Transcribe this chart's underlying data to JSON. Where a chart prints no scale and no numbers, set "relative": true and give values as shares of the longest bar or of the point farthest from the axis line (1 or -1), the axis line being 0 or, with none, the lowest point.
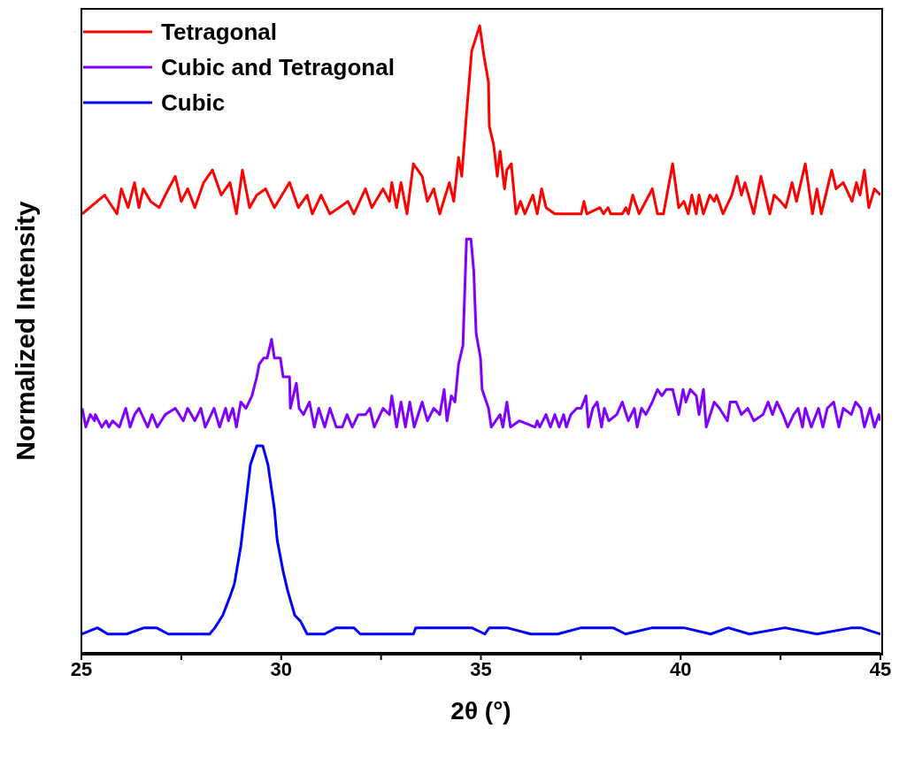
{
  "chart_data": {
    "type": "line",
    "relative": true,
    "xlabel": "2θ (°)",
    "ylabel": "Normalized Intensity",
    "legend": "top left",
    "xlim": [
      25,
      45
    ],
    "xticks": [
      25,
      {
        "value": 27.5,
        "label": null
      },
      30,
      {
        "value": 32.5,
        "label": null
      },
      35,
      {
        "value": 37.5,
        "label": null
      },
      40,
      {
        "value": 42.5,
        "label": null
      },
      45
    ],
    "series": [
      {
        "name": "Tetragonal",
        "color": "#ff0000",
        "x": [
          25.02,
          25.58,
          25.89,
          26.0,
          26.17,
          26.33,
          26.44,
          26.55,
          26.73,
          26.95,
          27.1,
          27.35,
          27.5,
          27.66,
          27.84,
          28.06,
          28.28,
          28.5,
          28.72,
          28.88,
          29.03,
          29.21,
          29.39,
          29.61,
          29.83,
          30.21,
          30.43,
          30.65,
          30.78,
          31.0,
          31.22,
          31.45,
          31.67,
          31.82,
          32.11,
          32.27,
          32.55,
          32.71,
          32.77,
          32.89,
          33.0,
          33.15,
          33.31,
          33.53,
          33.66,
          33.82,
          33.97,
          34.21,
          34.32,
          34.44,
          34.52,
          34.64,
          34.77,
          34.97,
          35.08,
          35.19,
          35.21,
          35.32,
          35.41,
          35.48,
          35.59,
          35.65,
          35.76,
          35.88,
          35.99,
          36.1,
          36.3,
          36.41,
          36.52,
          36.63,
          36.85,
          37.51,
          37.58,
          37.65,
          37.98,
          38.07,
          38.18,
          38.25,
          38.54,
          38.63,
          38.69,
          38.8,
          38.96,
          39.29,
          39.42,
          39.57,
          39.8,
          39.95,
          40.08,
          40.19,
          40.28,
          40.39,
          40.46,
          40.57,
          40.73,
          40.84,
          40.9,
          41.06,
          41.28,
          41.41,
          41.52,
          41.61,
          41.83,
          42.01,
          42.23,
          42.34,
          42.5,
          42.63,
          42.79,
          42.9,
          43.12,
          43.3,
          43.41,
          43.52,
          43.78,
          43.89,
          44.07,
          44.29,
          44.4,
          44.49,
          44.6,
          44.71,
          44.85,
          45.0
        ],
        "values": [
          0.7,
          0.73,
          0.7,
          0.74,
          0.71,
          0.75,
          0.71,
          0.74,
          0.72,
          0.71,
          0.73,
          0.76,
          0.72,
          0.74,
          0.71,
          0.75,
          0.77,
          0.73,
          0.75,
          0.7,
          0.77,
          0.71,
          0.73,
          0.74,
          0.71,
          0.75,
          0.71,
          0.73,
          0.7,
          0.73,
          0.7,
          0.71,
          0.72,
          0.7,
          0.74,
          0.71,
          0.74,
          0.72,
          0.75,
          0.71,
          0.75,
          0.7,
          0.78,
          0.76,
          0.72,
          0.74,
          0.7,
          0.75,
          0.72,
          0.79,
          0.76,
          0.86,
          0.96,
          1.0,
          0.95,
          0.91,
          0.84,
          0.81,
          0.76,
          0.8,
          0.74,
          0.77,
          0.78,
          0.7,
          0.72,
          0.7,
          0.73,
          0.7,
          0.74,
          0.71,
          0.7,
          0.7,
          0.72,
          0.7,
          0.71,
          0.7,
          0.71,
          0.7,
          0.7,
          0.71,
          0.7,
          0.73,
          0.7,
          0.74,
          0.7,
          0.7,
          0.78,
          0.71,
          0.72,
          0.7,
          0.73,
          0.7,
          0.73,
          0.7,
          0.73,
          0.72,
          0.73,
          0.7,
          0.73,
          0.76,
          0.73,
          0.75,
          0.7,
          0.76,
          0.7,
          0.73,
          0.72,
          0.71,
          0.75,
          0.72,
          0.78,
          0.7,
          0.74,
          0.7,
          0.77,
          0.74,
          0.75,
          0.72,
          0.75,
          0.73,
          0.77,
          0.71,
          0.74,
          0.73
        ]
      },
      {
        "name": "Cubic and Tetragonal",
        "color": "#8000ff",
        "x": [
          25.02,
          25.11,
          25.22,
          25.33,
          25.35,
          25.51,
          25.62,
          25.69,
          25.78,
          25.95,
          26.11,
          26.22,
          26.33,
          26.44,
          26.66,
          26.77,
          26.9,
          27.1,
          27.35,
          27.55,
          27.66,
          27.84,
          27.99,
          28.1,
          28.32,
          28.46,
          28.61,
          28.68,
          28.79,
          28.88,
          28.99,
          29.12,
          29.27,
          29.39,
          29.45,
          29.56,
          29.65,
          29.76,
          29.83,
          29.98,
          30.05,
          30.21,
          30.23,
          30.38,
          30.45,
          30.56,
          30.71,
          30.83,
          30.94,
          31.09,
          31.22,
          31.38,
          31.53,
          31.65,
          31.78,
          31.93,
          32.11,
          32.22,
          32.33,
          32.55,
          32.71,
          32.77,
          32.89,
          33.0,
          33.11,
          33.22,
          33.33,
          33.53,
          33.66,
          33.82,
          33.97,
          34.08,
          34.15,
          34.26,
          34.35,
          34.44,
          34.55,
          34.64,
          34.75,
          34.82,
          34.88,
          34.99,
          35.03,
          35.19,
          35.26,
          35.48,
          35.55,
          35.65,
          35.74,
          35.96,
          36.36,
          36.41,
          36.47,
          36.63,
          36.74,
          36.85,
          36.96,
          37.07,
          37.14,
          37.25,
          37.4,
          37.51,
          37.63,
          37.69,
          37.8,
          37.91,
          38.02,
          38.09,
          38.2,
          38.4,
          38.54,
          38.69,
          38.84,
          38.91,
          39.02,
          39.13,
          39.29,
          39.42,
          39.53,
          39.64,
          39.8,
          39.95,
          40.06,
          40.13,
          40.24,
          40.39,
          40.46,
          40.57,
          40.64,
          40.84,
          40.97,
          41.17,
          41.24,
          41.39,
          41.52,
          41.68,
          41.83,
          42.06,
          42.19,
          42.3,
          42.41,
          42.56,
          42.68,
          42.83,
          42.94,
          43.05,
          43.12,
          43.27,
          43.45,
          43.56,
          43.67,
          43.83,
          43.96,
          44.07,
          44.27,
          44.38,
          44.51,
          44.6,
          44.74,
          44.85,
          44.96,
          45.0
        ],
        "values": [
          0.39,
          0.36,
          0.38,
          0.37,
          0.38,
          0.36,
          0.37,
          0.36,
          0.37,
          0.36,
          0.39,
          0.36,
          0.38,
          0.39,
          0.36,
          0.38,
          0.36,
          0.38,
          0.39,
          0.37,
          0.39,
          0.37,
          0.39,
          0.36,
          0.39,
          0.36,
          0.39,
          0.37,
          0.39,
          0.36,
          0.4,
          0.39,
          0.41,
          0.44,
          0.46,
          0.47,
          0.47,
          0.5,
          0.47,
          0.47,
          0.44,
          0.44,
          0.39,
          0.43,
          0.39,
          0.38,
          0.4,
          0.36,
          0.39,
          0.36,
          0.39,
          0.36,
          0.36,
          0.38,
          0.36,
          0.38,
          0.38,
          0.39,
          0.36,
          0.39,
          0.38,
          0.41,
          0.36,
          0.4,
          0.36,
          0.4,
          0.36,
          0.4,
          0.37,
          0.39,
          0.38,
          0.42,
          0.37,
          0.41,
          0.4,
          0.46,
          0.49,
          0.66,
          0.66,
          0.61,
          0.51,
          0.47,
          0.42,
          0.39,
          0.36,
          0.38,
          0.36,
          0.4,
          0.36,
          0.37,
          0.36,
          0.37,
          0.36,
          0.38,
          0.36,
          0.38,
          0.36,
          0.38,
          0.36,
          0.38,
          0.39,
          0.39,
          0.41,
          0.36,
          0.39,
          0.4,
          0.36,
          0.39,
          0.37,
          0.38,
          0.4,
          0.37,
          0.39,
          0.36,
          0.39,
          0.38,
          0.4,
          0.42,
          0.41,
          0.42,
          0.42,
          0.38,
          0.42,
          0.4,
          0.42,
          0.41,
          0.38,
          0.42,
          0.36,
          0.4,
          0.39,
          0.37,
          0.4,
          0.4,
          0.38,
          0.39,
          0.37,
          0.38,
          0.4,
          0.38,
          0.4,
          0.38,
          0.36,
          0.38,
          0.39,
          0.36,
          0.39,
          0.36,
          0.39,
          0.36,
          0.39,
          0.4,
          0.36,
          0.39,
          0.38,
          0.4,
          0.39,
          0.36,
          0.39,
          0.36,
          0.38,
          0.37
        ]
      },
      {
        "name": "Cubic",
        "color": "#0000ff",
        "x": [
          25.02,
          25.4,
          25.66,
          26.13,
          26.57,
          26.88,
          27.17,
          27.5,
          27.9,
          28.21,
          28.34,
          28.54,
          28.72,
          28.83,
          28.99,
          29.12,
          29.23,
          29.39,
          29.54,
          29.67,
          29.83,
          29.9,
          30.05,
          30.16,
          30.34,
          30.49,
          30.65,
          30.78,
          31.09,
          31.38,
          31.82,
          31.98,
          32.71,
          33.31,
          33.37,
          33.97,
          34.55,
          34.77,
          35.1,
          35.21,
          35.65,
          36.25,
          36.92,
          37.51,
          38.31,
          38.62,
          39.29,
          40.08,
          40.75,
          41.19,
          41.72,
          42.61,
          43.41,
          44.29,
          44.51,
          45.0
        ],
        "values": [
          0.03,
          0.04,
          0.03,
          0.03,
          0.04,
          0.04,
          0.03,
          0.03,
          0.03,
          0.03,
          0.04,
          0.06,
          0.09,
          0.11,
          0.17,
          0.24,
          0.3,
          0.33,
          0.33,
          0.3,
          0.23,
          0.18,
          0.13,
          0.1,
          0.06,
          0.05,
          0.03,
          0.03,
          0.03,
          0.04,
          0.04,
          0.03,
          0.03,
          0.03,
          0.04,
          0.04,
          0.04,
          0.04,
          0.03,
          0.04,
          0.04,
          0.03,
          0.03,
          0.04,
          0.04,
          0.03,
          0.04,
          0.04,
          0.03,
          0.04,
          0.03,
          0.04,
          0.03,
          0.04,
          0.04,
          0.03
        ]
      }
    ]
  }
}
